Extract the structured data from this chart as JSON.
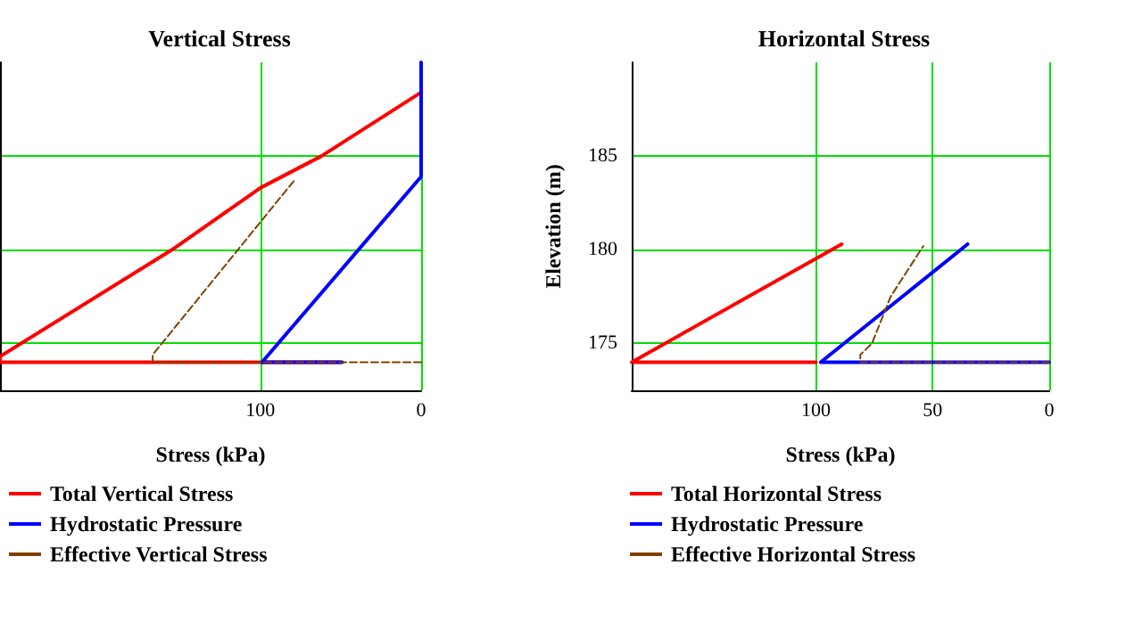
{
  "chart_data": [
    {
      "type": "line",
      "title": "Vertical Stress",
      "xlabel": "Stress (kPa)",
      "xlim": [
        262,
        0
      ],
      "xticks": [
        100,
        0
      ],
      "ylim": [
        172.5,
        190
      ],
      "yticks": [
        175,
        180,
        185
      ],
      "tick_labels": "x",
      "grid": true,
      "legend": "bottom left",
      "marker": "none",
      "series": [
        {
          "name": "Total Vertical Stress",
          "color": "#ff0000",
          "line_style": "solid",
          "x": [
            50,
            262,
            262,
            155,
            100,
            62,
            0
          ],
          "values": [
            174,
            174,
            174.3,
            180,
            183.3,
            185,
            188.4
          ]
        },
        {
          "name": "Hydrostatic Pressure",
          "color": "#0000ff",
          "line_style": "solid",
          "x": [
            49,
            99,
            0,
            0
          ],
          "values": [
            174,
            174,
            183.9,
            190
          ]
        },
        {
          "name": "Effective Vertical Stress",
          "color": "#804000",
          "line_style": "dashed",
          "x": [
            0,
            167,
            167,
            78
          ],
          "values": [
            174,
            174,
            174.4,
            183.8
          ]
        }
      ]
    },
    {
      "type": "line",
      "title": "Horizontal Stress",
      "xlabel": "Stress (kPa)",
      "ylabel": "Elevation (m)",
      "xlim": [
        179,
        0
      ],
      "xticks": [
        100,
        50,
        0
      ],
      "ylim": [
        172.5,
        190
      ],
      "yticks": [
        175,
        180,
        185
      ],
      "grid": true,
      "legend": "bottom left",
      "marker": "none",
      "series": [
        {
          "name": "Total Horizontal Stress",
          "color": "#ff0000",
          "line_style": "solid",
          "x": [
            100,
            179,
            89
          ],
          "values": [
            174,
            174,
            180.3
          ]
        },
        {
          "name": "Hydrostatic Pressure",
          "color": "#0000ff",
          "line_style": "solid",
          "x": [
            0,
            98,
            35
          ],
          "values": [
            174,
            174,
            180.3
          ]
        },
        {
          "name": "Effective Horizontal Stress",
          "color": "#804000",
          "line_style": "dashed",
          "x": [
            0,
            81,
            81,
            76,
            68,
            54
          ],
          "values": [
            174,
            174,
            174.4,
            175,
            177.5,
            180.2
          ]
        }
      ]
    }
  ]
}
